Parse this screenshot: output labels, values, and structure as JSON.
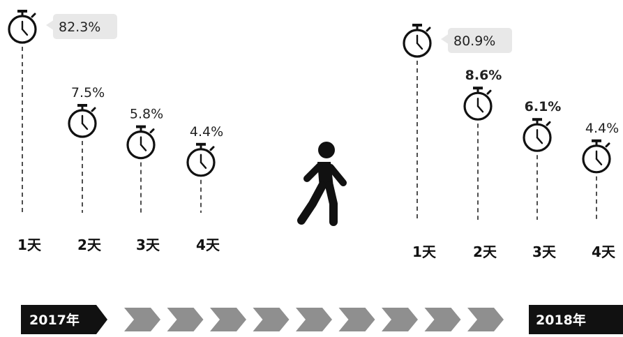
{
  "chart_data": {
    "type": "scatter",
    "categories": [
      "1天",
      "2天",
      "3天",
      "4天"
    ],
    "series": [
      {
        "name": "2017年",
        "values": [
          82.3,
          7.5,
          5.8,
          4.4
        ],
        "labels": [
          "82.3%",
          "7.5%",
          "5.8%",
          "4.4%"
        ]
      },
      {
        "name": "2018年",
        "values": [
          80.9,
          8.6,
          6.1,
          4.4
        ],
        "labels": [
          "80.9%",
          "8.6%",
          "6.1%",
          "4.4%"
        ]
      }
    ],
    "title": "",
    "xlabel": "",
    "ylabel": ""
  },
  "timeline": {
    "start_label": "2017年",
    "end_label": "2018年",
    "arrow_count": 9
  },
  "icons": {
    "marker": "stopwatch-icon",
    "center": "walking-person-icon"
  },
  "colors": {
    "ink": "#111111",
    "label_bg": "#e8e8e8",
    "chevron": "#8f8f8f",
    "tag_bg": "#111111"
  }
}
